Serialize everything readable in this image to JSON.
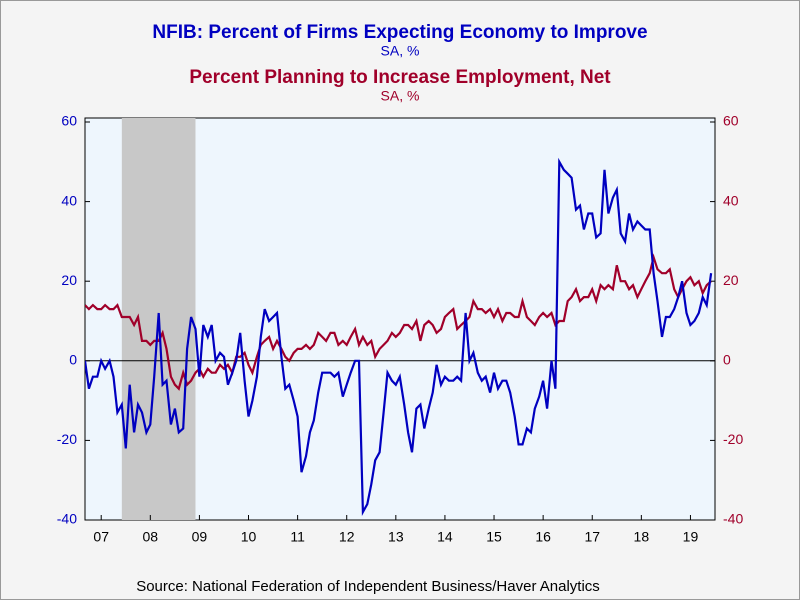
{
  "chart_data": {
    "type": "line",
    "title": "NFIB: Percent of Firms Expecting Economy to Improve",
    "subtitle": "SA, %",
    "title2": "Percent Planning to Increase Employment, Net",
    "subtitle2": "SA, %",
    "source": "Source:  National Federation of Independent Business/Haver Analytics",
    "xlim": [
      2007.17,
      2020.0
    ],
    "xticks": [
      {
        "value": 2007.5,
        "label": "07"
      },
      {
        "value": 2008.5,
        "label": "08"
      },
      {
        "value": 2009.5,
        "label": "09"
      },
      {
        "value": 2010.5,
        "label": "10"
      },
      {
        "value": 2011.5,
        "label": "11"
      },
      {
        "value": 2012.5,
        "label": "12"
      },
      {
        "value": 2013.5,
        "label": "13"
      },
      {
        "value": 2014.5,
        "label": "14"
      },
      {
        "value": 2015.5,
        "label": "15"
      },
      {
        "value": 2016.5,
        "label": "16"
      },
      {
        "value": 2017.5,
        "label": "17"
      },
      {
        "value": 2018.5,
        "label": "18"
      },
      {
        "value": 2019.5,
        "label": "19"
      }
    ],
    "ylim": [
      -40,
      60
    ],
    "yticks": [
      -40,
      -20,
      0,
      20,
      40,
      60
    ],
    "y2lim": [
      -40,
      60
    ],
    "y2ticks": [
      -40,
      -20,
      0,
      20,
      40,
      60
    ],
    "recession": [
      2007.92,
      2009.42
    ],
    "x": [
      2007.17,
      2007.25,
      2007.33,
      2007.42,
      2007.5,
      2007.58,
      2007.67,
      2007.75,
      2007.83,
      2007.92,
      2008,
      2008.08,
      2008.17,
      2008.25,
      2008.33,
      2008.42,
      2008.5,
      2008.58,
      2008.67,
      2008.75,
      2008.83,
      2008.92,
      2009,
      2009.08,
      2009.17,
      2009.25,
      2009.33,
      2009.42,
      2009.5,
      2009.58,
      2009.67,
      2009.75,
      2009.83,
      2009.92,
      2010,
      2010.08,
      2010.17,
      2010.25,
      2010.33,
      2010.42,
      2010.5,
      2010.58,
      2010.67,
      2010.75,
      2010.83,
      2010.92,
      2011,
      2011.08,
      2011.17,
      2011.25,
      2011.33,
      2011.42,
      2011.5,
      2011.58,
      2011.67,
      2011.75,
      2011.83,
      2011.92,
      2012,
      2012.08,
      2012.17,
      2012.25,
      2012.33,
      2012.42,
      2012.5,
      2012.58,
      2012.67,
      2012.75,
      2012.83,
      2012.92,
      2013,
      2013.08,
      2013.17,
      2013.25,
      2013.33,
      2013.42,
      2013.5,
      2013.58,
      2013.67,
      2013.75,
      2013.83,
      2013.92,
      2014,
      2014.08,
      2014.17,
      2014.25,
      2014.33,
      2014.42,
      2014.5,
      2014.58,
      2014.67,
      2014.75,
      2014.83,
      2014.92,
      2015,
      2015.08,
      2015.17,
      2015.25,
      2015.33,
      2015.42,
      2015.5,
      2015.58,
      2015.67,
      2015.75,
      2015.83,
      2015.92,
      2016,
      2016.08,
      2016.17,
      2016.25,
      2016.33,
      2016.42,
      2016.5,
      2016.58,
      2016.67,
      2016.75,
      2016.83,
      2016.92,
      2017,
      2017.08,
      2017.17,
      2017.25,
      2017.33,
      2017.42,
      2017.5,
      2017.58,
      2017.67,
      2017.75,
      2017.83,
      2017.92,
      2018,
      2018.08,
      2018.17,
      2018.25,
      2018.33,
      2018.42,
      2018.5,
      2018.58,
      2018.67,
      2018.75,
      2018.83,
      2018.92,
      2019,
      2019.08,
      2019.17,
      2019.25,
      2019.33,
      2019.42,
      2019.5,
      2019.58,
      2019.67,
      2019.75,
      2019.83,
      2019.92
    ],
    "series": [
      {
        "name": "Percent of Firms Expecting Economy to Improve",
        "color": "#0000c0",
        "axis": "y",
        "values": [
          0,
          -7,
          -4,
          -4,
          0,
          -2,
          0,
          -4,
          -13,
          -11,
          -22,
          -6,
          -18,
          -11,
          -13,
          -18,
          -16,
          -4,
          12,
          -6,
          -5,
          -16,
          -12,
          -18,
          -17,
          3,
          11,
          8,
          -4,
          9,
          6,
          9,
          0,
          2,
          1,
          -6,
          -3,
          0,
          7,
          -5,
          -14,
          -10,
          -4,
          6,
          13,
          10,
          11,
          12,
          1,
          -7,
          -6,
          -10,
          -14,
          -28,
          -24,
          -18,
          -15,
          -8,
          -3,
          -3,
          -3,
          -4,
          -3,
          -9,
          -6,
          -3,
          0,
          0,
          -38,
          -36,
          -31,
          -25,
          -23,
          -13,
          -3,
          -5,
          -6,
          -4,
          -11,
          -18,
          -23,
          -12,
          -11,
          -17,
          -12,
          -8,
          -1,
          -6,
          -4,
          -5,
          -5,
          -4,
          -5,
          12,
          0,
          2,
          -3,
          -5,
          -4,
          -8,
          -3,
          -7,
          -5,
          -5,
          -8,
          -14,
          -21,
          -21,
          -17,
          -18,
          -12,
          -9,
          -5,
          -12,
          0,
          -7,
          50,
          48,
          47,
          46,
          38,
          39,
          33,
          37,
          37,
          31,
          32,
          48,
          37,
          41,
          43,
          32,
          30,
          37,
          33,
          35,
          34,
          33,
          33,
          22,
          15,
          6,
          11,
          11,
          13,
          16,
          20,
          12,
          9,
          10,
          12,
          16,
          14,
          22
        ]
      },
      {
        "name": "Percent Planning to Increase Employment, Net",
        "color": "#a0002a",
        "axis": "y2",
        "values": [
          14,
          13,
          14,
          13,
          13,
          14,
          13,
          13,
          14,
          11,
          11,
          11,
          9,
          11,
          5,
          5,
          4,
          5,
          5,
          7,
          3,
          -4,
          -6,
          -7,
          -3,
          -6,
          -5,
          -3,
          -2,
          -4,
          -2,
          -3,
          -3,
          -1,
          -2,
          -1,
          -3,
          1,
          1,
          2,
          -1,
          -3,
          1,
          4,
          5,
          6,
          3,
          5,
          3,
          1,
          0,
          2,
          3,
          3,
          4,
          3,
          4,
          7,
          6,
          5,
          7,
          7,
          4,
          5,
          4,
          6,
          8,
          4,
          6,
          4,
          5,
          1,
          3,
          4,
          5,
          7,
          6,
          7,
          9,
          9,
          8,
          10,
          5,
          9,
          10,
          9,
          7,
          8,
          11,
          12,
          13,
          8,
          9,
          10,
          11,
          15,
          13,
          13,
          12,
          13,
          11,
          13,
          10,
          12,
          12,
          11,
          11,
          15,
          11,
          10,
          9,
          11,
          12,
          11,
          12,
          9,
          10,
          10,
          15,
          16,
          18,
          15,
          16,
          16,
          18,
          15,
          19,
          18,
          19,
          18,
          24,
          20,
          20,
          18,
          19,
          16,
          18,
          20,
          22,
          26,
          23,
          22,
          22,
          23,
          18,
          16,
          18,
          20,
          21,
          19,
          20,
          17,
          19,
          20
        ]
      }
    ]
  }
}
